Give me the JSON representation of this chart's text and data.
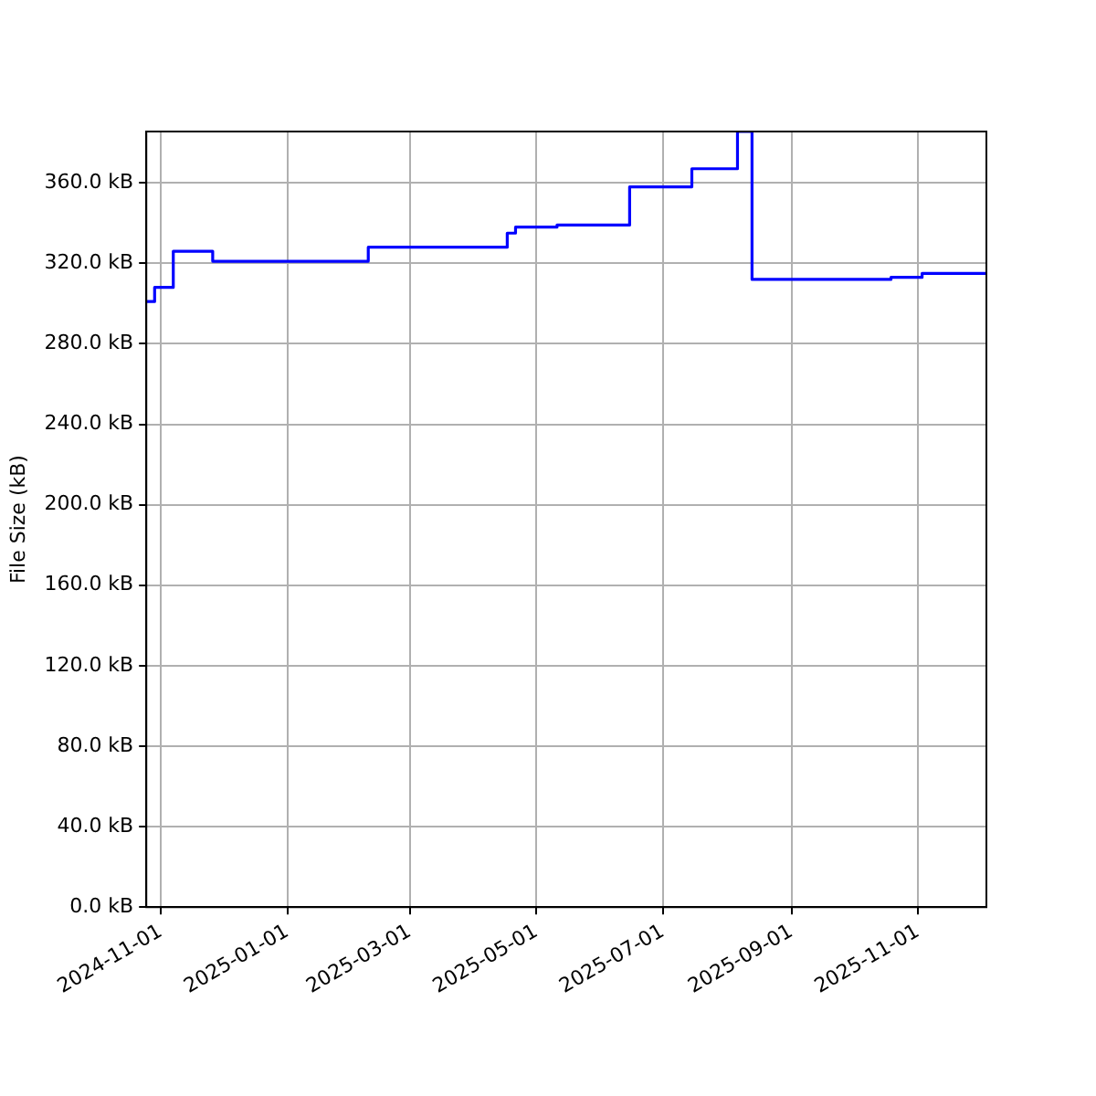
{
  "chart_data": {
    "type": "step",
    "ylabel": "File Size (kB)",
    "x": [
      "2024-10-25",
      "2024-10-29",
      "2024-11-07",
      "2024-11-26",
      "2025-02-09",
      "2025-04-17",
      "2025-04-21",
      "2025-05-11",
      "2025-06-15",
      "2025-07-15",
      "2025-08-06",
      "2025-08-13",
      "2025-10-19",
      "2025-11-03",
      "2025-12-04"
    ],
    "series": [
      {
        "color": "#0000ff",
        "values": [
          301,
          308,
          326,
          321,
          328,
          335,
          338,
          339,
          358,
          367,
          385.5,
          312,
          313,
          315,
          315
        ]
      }
    ],
    "xlim": [
      "2024-10-25",
      "2025-12-04"
    ],
    "xticks": [
      {
        "value": "2024-11-01",
        "label": "2024-11-01"
      },
      {
        "value": "2025-01-01",
        "label": "2025-01-01"
      },
      {
        "value": "2025-03-01",
        "label": "2025-03-01"
      },
      {
        "value": "2025-05-01",
        "label": "2025-05-01"
      },
      {
        "value": "2025-07-01",
        "label": "2025-07-01"
      },
      {
        "value": "2025-09-01",
        "label": "2025-09-01"
      },
      {
        "value": "2025-11-01",
        "label": "2025-11-01"
      }
    ],
    "ylim": [
      0,
      385.5
    ],
    "yticks": [
      {
        "value": 0,
        "label": "0.0 kB"
      },
      {
        "value": 40,
        "label": "40.0 kB"
      },
      {
        "value": 80,
        "label": "80.0 kB"
      },
      {
        "value": 120,
        "label": "120.0 kB"
      },
      {
        "value": 160,
        "label": "160.0 kB"
      },
      {
        "value": 200,
        "label": "200.0 kB"
      },
      {
        "value": 240,
        "label": "240.0 kB"
      },
      {
        "value": 280,
        "label": "280.0 kB"
      },
      {
        "value": 320,
        "label": "320.0 kB"
      },
      {
        "value": 360,
        "label": "360.0 kB"
      }
    ],
    "grid": true,
    "legend": false,
    "marker": "none",
    "line_style": "solid"
  }
}
